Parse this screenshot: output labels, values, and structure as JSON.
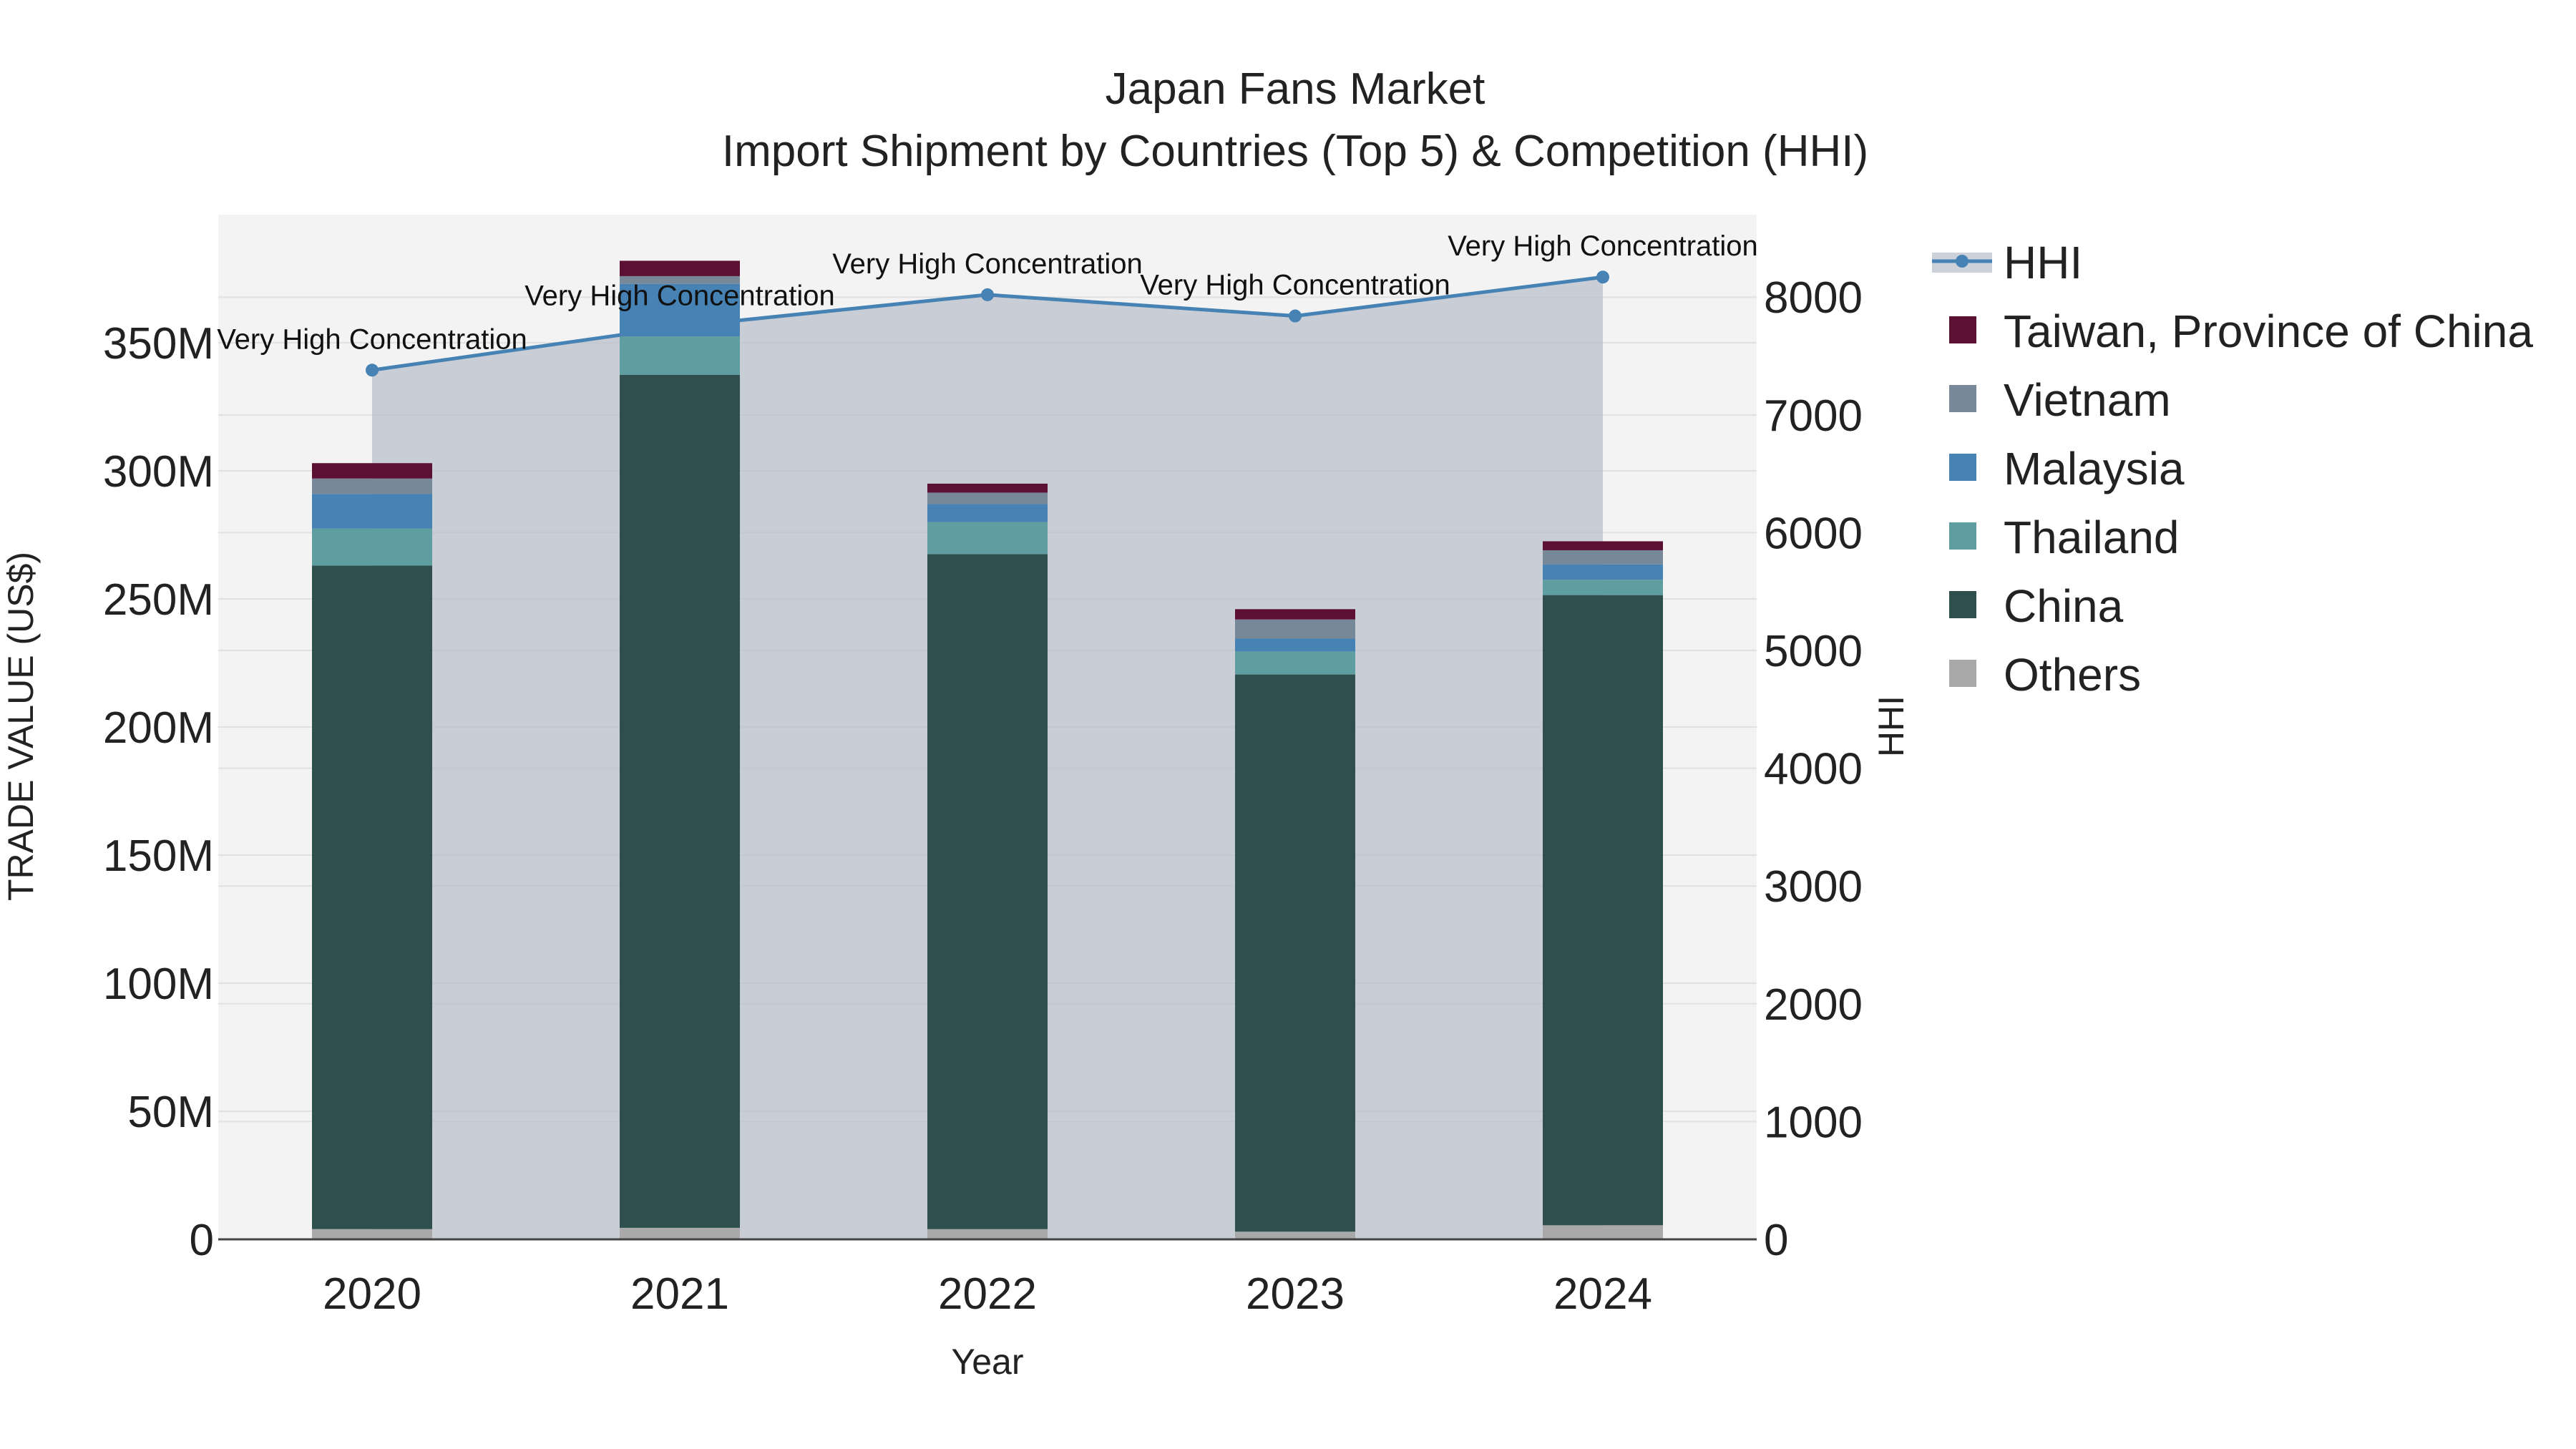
{
  "colors": {
    "others": "#a9a9a9",
    "china": "#2f4f4f",
    "thailand": "#5f9ea0",
    "malaysia": "#4682b4",
    "vietnam": "#778899",
    "taiwan": "#5c1034",
    "hhi_line": "#4682b4",
    "hhi_fill": "#b0b8c6",
    "plot_bg": "#f3f3f3",
    "grid": "#e1e1e1"
  },
  "chart_data": {
    "type": "bar",
    "title": "Japan Fans Market",
    "subtitle": "Import Shipment by Countries (Top 5) & Competition (HHI)",
    "xlabel": "Year",
    "ylabel": "TRADE VALUE (US$)",
    "y2label": "HHI",
    "categories": [
      "2020",
      "2021",
      "2022",
      "2023",
      "2024"
    ],
    "ylim": [
      0,
      400000000
    ],
    "y_ticks": [
      0,
      50000000,
      100000000,
      150000000,
      200000000,
      250000000,
      300000000,
      350000000
    ],
    "y_tick_labels": [
      "0",
      "50M",
      "100M",
      "150M",
      "200M",
      "250M",
      "300M",
      "350M"
    ],
    "y2lim": [
      0,
      8700
    ],
    "y2_ticks": [
      0,
      1000,
      2000,
      3000,
      4000,
      5000,
      6000,
      7000,
      8000
    ],
    "y2_tick_labels": [
      "0",
      "1000",
      "2000",
      "3000",
      "4000",
      "5000",
      "6000",
      "7000",
      "8000"
    ],
    "series": [
      {
        "name": "Others",
        "key": "others",
        "values": [
          4000000,
          4500000,
          4000000,
          3000000,
          5500000
        ]
      },
      {
        "name": "China",
        "key": "china",
        "values": [
          259000000,
          333000000,
          263500000,
          217500000,
          246000000
        ]
      },
      {
        "name": "Thailand",
        "key": "thailand",
        "values": [
          14500000,
          15000000,
          12500000,
          9000000,
          6000000
        ]
      },
      {
        "name": "Malaysia",
        "key": "malaysia",
        "values": [
          13500000,
          20500000,
          7000000,
          5000000,
          6000000
        ]
      },
      {
        "name": "Vietnam",
        "key": "vietnam",
        "values": [
          6000000,
          3000000,
          4500000,
          7500000,
          5500000
        ]
      },
      {
        "name": "Taiwan, Province of China",
        "key": "taiwan",
        "values": [
          6000000,
          6000000,
          3500000,
          4000000,
          3500000
        ]
      }
    ],
    "hhi": {
      "name": "HHI",
      "values": [
        7380,
        7750,
        8020,
        7840,
        8170
      ],
      "labels": [
        "Very High Concentration",
        "Very High Concentration",
        "Very High Concentration",
        "Very High Concentration",
        "Very High Concentration"
      ]
    },
    "legend": [
      "HHI",
      "Taiwan, Province of China",
      "Vietnam",
      "Malaysia",
      "Thailand",
      "China",
      "Others"
    ],
    "legend_position": "right"
  }
}
